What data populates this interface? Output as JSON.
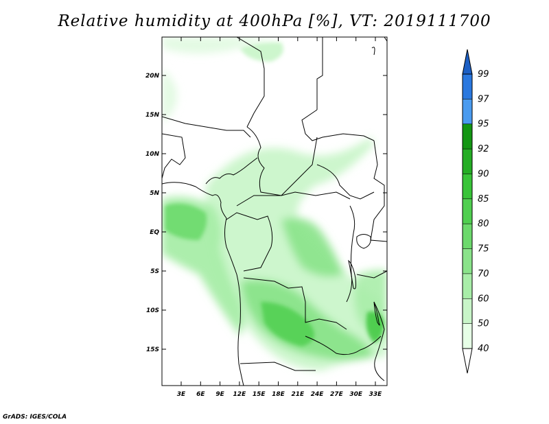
{
  "title": "Relative humidity at 400hPa [%], VT: 2019111700",
  "credit": "GrADS: IGES/COLA",
  "map": {
    "lat_labels": [
      "20N",
      "15N",
      "10N",
      "5N",
      "EQ",
      "5S",
      "10S",
      "15S"
    ],
    "lon_labels": [
      "3E",
      "6E",
      "9E",
      "12E",
      "15E",
      "18E",
      "21E",
      "24E",
      "27E",
      "30E",
      "33E"
    ]
  },
  "colorbar": {
    "levels": [
      "40",
      "50",
      "60",
      "70",
      "75",
      "80",
      "85",
      "90",
      "92",
      "95",
      "97",
      "99"
    ],
    "colors": {
      "band_40_50": "#e6ffe6",
      "band_50_60": "#c8f5c8",
      "band_60_70": "#a8eda8",
      "band_70_75": "#8ae38a",
      "band_75_80": "#6cd96c",
      "band_80_85": "#50cf50",
      "band_85_90": "#38c438",
      "band_90_92": "#24ad24",
      "band_92_95": "#139613",
      "band_95_97": "#4a9bef",
      "band_97_99": "#2a78df",
      "band_above_99": "#1c5fc4",
      "band_below_40": "#ffffff"
    }
  }
}
